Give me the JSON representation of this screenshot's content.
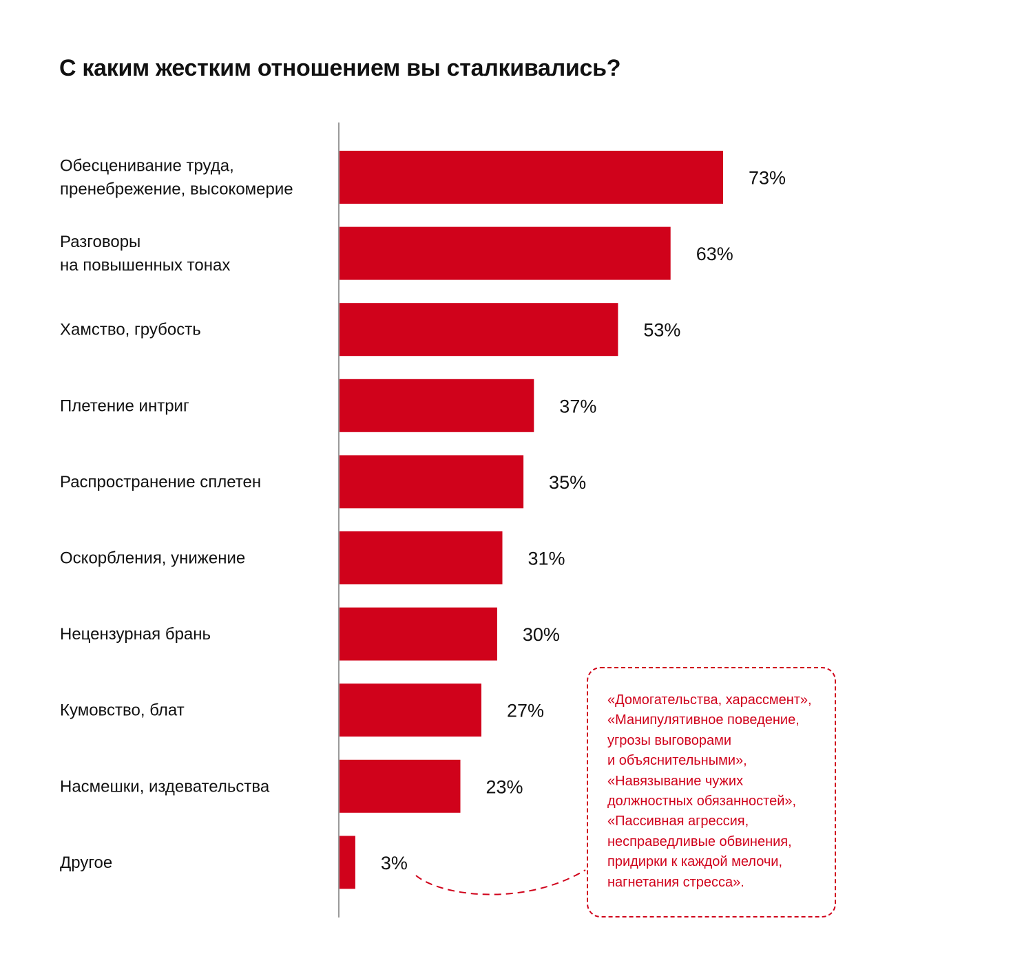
{
  "colors": {
    "bar": "#d0021b",
    "axis": "#9a9a9a",
    "annotation": "#d0021b",
    "text": "#111111"
  },
  "chart_data": {
    "type": "bar",
    "orientation": "horizontal",
    "title": "С каким жестким отношением вы сталкивались?",
    "categories": [
      [
        "Обесценивание труда,",
        "пренебрежение, высокомерие"
      ],
      [
        "Разговоры",
        "на повышенных тонах"
      ],
      [
        "Хамство, грубость"
      ],
      [
        "Плетение интриг"
      ],
      [
        "Распространение сплетен"
      ],
      [
        "Оскорбления, унижение"
      ],
      [
        "Нецензурная брань"
      ],
      [
        "Кумовство, блат"
      ],
      [
        "Насмешки, издевательства"
      ],
      [
        "Другое"
      ]
    ],
    "values": [
      73,
      63,
      53,
      37,
      35,
      31,
      30,
      27,
      23,
      3
    ],
    "value_labels": [
      "73%",
      "63%",
      "53%",
      "37%",
      "35%",
      "31%",
      "30%",
      "27%",
      "23%",
      "3%"
    ],
    "unit": "%",
    "grid": false
  },
  "annotation": {
    "lines": [
      "«Домогательства, харассмент»,",
      "«Манипулятивное поведение,",
      "угрозы выговорами",
      "и объяснительными»,",
      "«Навязывание чужих",
      "должностных обязанностей»,",
      "«Пассивная агрессия,",
      "несправедливые обвинения,",
      "придирки к каждой мелочи,",
      "нагнетания стресса»."
    ]
  }
}
